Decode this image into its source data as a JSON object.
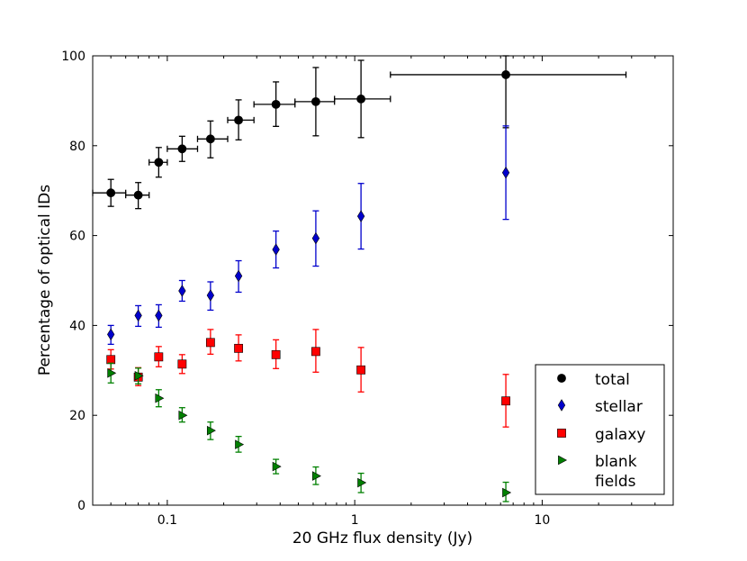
{
  "chart_data": {
    "type": "scatter",
    "title": "",
    "xlabel": "20 GHz flux density (Jy)",
    "ylabel": "Percentage of optical IDs",
    "xscale": "log",
    "xlim": [
      0.04,
      50
    ],
    "ylim": [
      0,
      100
    ],
    "xticks": [
      0.1,
      1,
      10
    ],
    "xtick_labels": [
      "0.1",
      "1",
      "10"
    ],
    "yticks": [
      0,
      20,
      40,
      60,
      80,
      100
    ],
    "ytick_labels": [
      "0",
      "20",
      "40",
      "60",
      "80",
      "100"
    ],
    "legend_position": "lower-right",
    "series": [
      {
        "name": "total",
        "color": "#000000",
        "marker": "circle",
        "x": [
          0.05,
          0.07,
          0.09,
          0.12,
          0.17,
          0.24,
          0.38,
          0.62,
          1.08,
          6.4
        ],
        "y": [
          69.5,
          69.0,
          76.3,
          79.3,
          81.5,
          85.7,
          89.2,
          89.8,
          90.4,
          95.8
        ],
        "y_low": [
          66.5,
          66.0,
          73.0,
          76.5,
          77.3,
          81.3,
          84.3,
          82.2,
          81.8,
          84.0
        ],
        "y_high": [
          72.5,
          71.8,
          79.6,
          82.1,
          85.5,
          90.2,
          94.2,
          97.4,
          99.0,
          100.0
        ],
        "x_low": [
          0.04,
          0.06,
          0.08,
          0.1,
          0.145,
          0.21,
          0.29,
          0.48,
          0.78,
          1.55
        ],
        "x_high": [
          0.06,
          0.08,
          0.1,
          0.145,
          0.21,
          0.29,
          0.48,
          0.78,
          1.55,
          28.0
        ]
      },
      {
        "name": "stellar",
        "color": "#0000cc",
        "marker": "diamond",
        "x": [
          0.05,
          0.07,
          0.09,
          0.12,
          0.17,
          0.24,
          0.38,
          0.62,
          1.08,
          6.4
        ],
        "y": [
          38.0,
          42.2,
          42.2,
          47.7,
          46.7,
          51.0,
          56.9,
          59.4,
          64.3,
          74.0
        ],
        "y_low": [
          35.8,
          39.8,
          39.6,
          45.4,
          43.4,
          47.4,
          52.8,
          53.2,
          57.0,
          63.6
        ],
        "y_high": [
          40.0,
          44.4,
          44.6,
          50.0,
          49.7,
          54.4,
          61.0,
          65.5,
          71.6,
          84.4
        ]
      },
      {
        "name": "galaxy",
        "color": "#ff0000",
        "marker": "square",
        "x": [
          0.05,
          0.07,
          0.09,
          0.12,
          0.17,
          0.24,
          0.38,
          0.62,
          1.08,
          6.4
        ],
        "y": [
          32.4,
          28.5,
          33.0,
          31.4,
          36.2,
          34.9,
          33.5,
          34.2,
          30.1,
          23.2
        ],
        "y_low": [
          30.3,
          26.6,
          30.8,
          29.3,
          33.6,
          32.1,
          30.4,
          29.6,
          25.2,
          17.4
        ],
        "y_high": [
          34.6,
          30.6,
          35.3,
          33.5,
          39.1,
          37.9,
          36.8,
          39.1,
          35.1,
          29.1
        ]
      },
      {
        "name": "blank\nfields",
        "color": "#008000",
        "marker": "triangle-right",
        "x": [
          0.05,
          0.07,
          0.09,
          0.12,
          0.17,
          0.24,
          0.38,
          0.62,
          1.08,
          6.4
        ],
        "y": [
          29.4,
          28.8,
          23.8,
          20.0,
          16.6,
          13.5,
          8.6,
          6.5,
          5.0,
          2.8
        ],
        "y_low": [
          27.2,
          27.0,
          21.9,
          18.5,
          14.6,
          11.8,
          7.0,
          4.6,
          2.8,
          0.8
        ],
        "y_high": [
          31.6,
          30.5,
          25.7,
          21.7,
          18.5,
          15.3,
          10.2,
          8.5,
          7.1,
          5.1
        ]
      }
    ]
  }
}
